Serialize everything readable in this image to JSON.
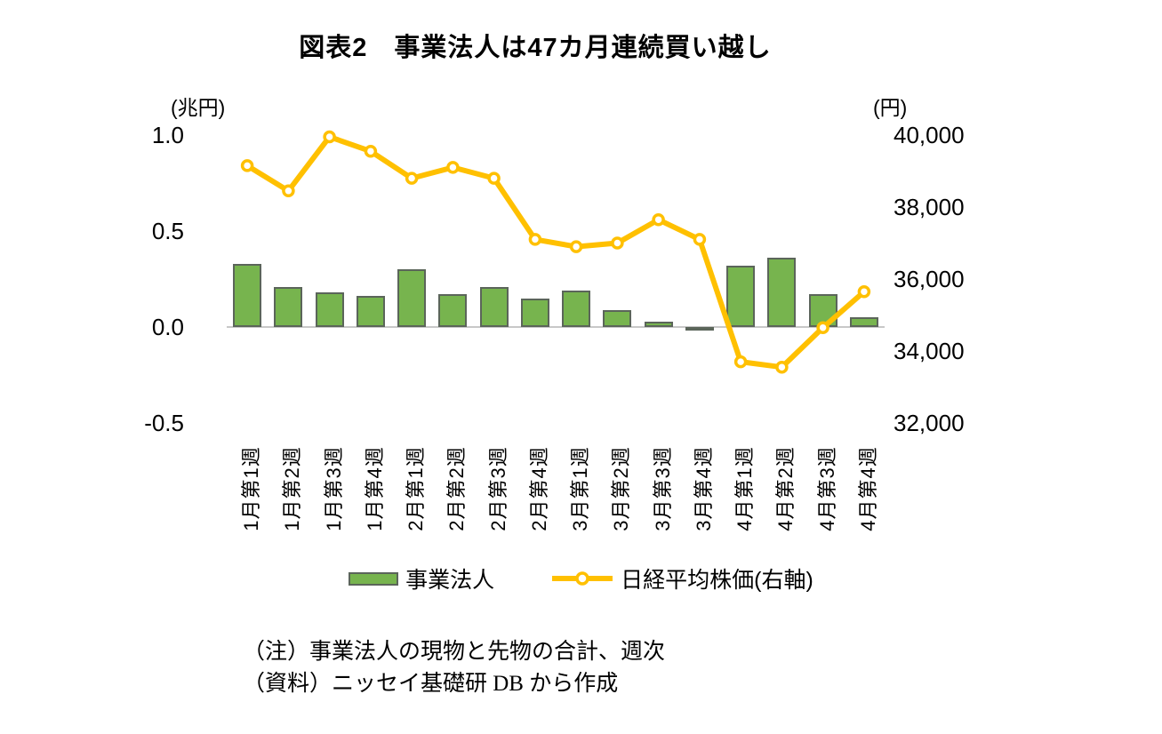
{
  "title": "図表2　事業法人は47カ月連続買い越し",
  "left_axis": {
    "unit": "(兆円)",
    "ticks": [
      {
        "label": "1.0",
        "value": 1.0
      },
      {
        "label": "0.5",
        "value": 0.5
      },
      {
        "label": "0.0",
        "value": 0.0
      },
      {
        "label": "-0.5",
        "value": -0.5
      }
    ]
  },
  "right_axis": {
    "unit": "(円)",
    "ticks": [
      {
        "label": "40,000",
        "value": 40000
      },
      {
        "label": "38,000",
        "value": 38000
      },
      {
        "label": "36,000",
        "value": 36000
      },
      {
        "label": "34,000",
        "value": 34000
      },
      {
        "label": "32,000",
        "value": 32000
      }
    ]
  },
  "legend": [
    {
      "label": "事業法人",
      "type": "bar"
    },
    {
      "label": "日経平均株価(右軸)",
      "type": "line"
    }
  ],
  "notes": [
    "（注）事業法人の現物と先物の合計、週次",
    "（資料）ニッセイ基礎研 DB から作成"
  ],
  "colors": {
    "bar_fill": "#77B44E",
    "bar_border": "#5B655A",
    "line": "#FFC000",
    "marker_fill": "#FFFFFF",
    "axis_line": "#C8C8C8",
    "text": "#000000"
  },
  "chart_data": {
    "type": "bar+line",
    "categories": [
      "1月第1週",
      "1月第2週",
      "1月第3週",
      "1月第4週",
      "2月第1週",
      "2月第2週",
      "2月第3週",
      "2月第4週",
      "3月第1週",
      "3月第2週",
      "3月第3週",
      "3月第4週",
      "4月第1週",
      "4月第2週",
      "4月第3週",
      "4月第4週"
    ],
    "series": [
      {
        "name": "事業法人",
        "type": "bar",
        "axis": "left",
        "unit": "兆円",
        "values": [
          0.33,
          0.21,
          0.18,
          0.16,
          0.3,
          0.17,
          0.21,
          0.15,
          0.19,
          0.09,
          0.03,
          -0.02,
          0.32,
          0.36,
          0.17,
          0.05
        ]
      },
      {
        "name": "日経平均株価(右軸)",
        "type": "line",
        "axis": "right",
        "unit": "円",
        "values": [
          39150,
          38450,
          39950,
          39550,
          38800,
          39100,
          38800,
          37100,
          36900,
          37000,
          37650,
          37100,
          33700,
          33550,
          34650,
          35650
        ]
      }
    ],
    "left_ylim": [
      -0.5,
      1.0
    ],
    "right_ylim": [
      32000,
      40000
    ],
    "grid": false,
    "legend_position": "bottom"
  }
}
